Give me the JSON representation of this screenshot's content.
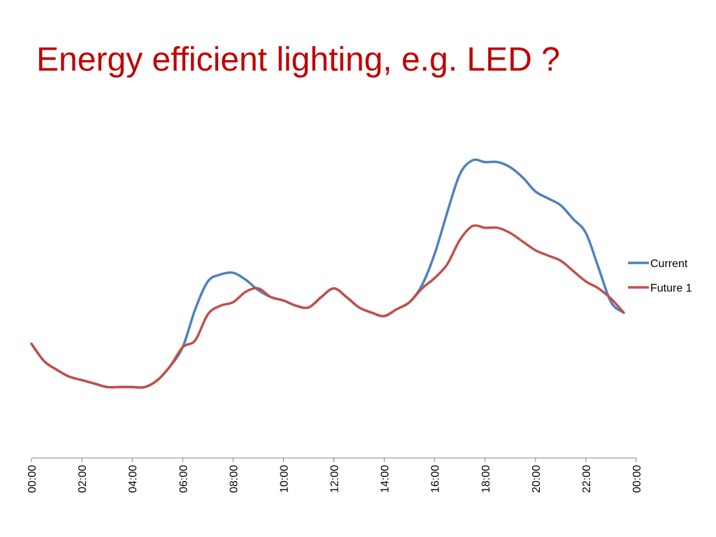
{
  "slide": {
    "title": "Energy efficient lighting, e.g. LED ?"
  },
  "chart_data": {
    "type": "line",
    "title": "",
    "xlabel": "",
    "ylabel": "",
    "x_ticks": [
      "00:00",
      "02:00",
      "04:00",
      "06:00",
      "08:00",
      "10:00",
      "12:00",
      "14:00",
      "16:00",
      "18:00",
      "20:00",
      "22:00",
      "00:00"
    ],
    "x_hours": [
      0,
      0.5,
      1,
      1.5,
      2,
      2.5,
      3,
      3.5,
      4,
      4.5,
      5,
      5.5,
      6,
      6.5,
      7,
      7.5,
      8,
      8.5,
      9,
      9.5,
      10,
      10.5,
      11,
      11.5,
      12,
      12.5,
      13,
      13.5,
      14,
      14.5,
      15,
      15.5,
      16,
      16.5,
      17,
      17.5,
      18,
      18.5,
      19,
      19.5,
      20,
      20.5,
      21,
      21.5,
      22,
      22.5,
      23,
      23.5
    ],
    "ylim": [
      0,
      1
    ],
    "y_axis_visible": false,
    "grid": false,
    "legend_position": "right",
    "series": [
      {
        "name": "Current",
        "color": "#4f81bd",
        "values": [
          0.33,
          0.28,
          0.255,
          0.235,
          0.225,
          0.215,
          0.205,
          0.205,
          0.205,
          0.205,
          0.225,
          0.265,
          0.32,
          0.43,
          0.51,
          0.53,
          0.535,
          0.515,
          0.485,
          0.465,
          0.455,
          0.44,
          0.435,
          0.465,
          0.49,
          0.465,
          0.435,
          0.42,
          0.41,
          0.43,
          0.45,
          0.5,
          0.59,
          0.71,
          0.82,
          0.86,
          0.855,
          0.855,
          0.84,
          0.81,
          0.77,
          0.75,
          0.73,
          0.69,
          0.65,
          0.55,
          0.45,
          0.42
        ]
      },
      {
        "name": "Future 1",
        "color": "#c0504d",
        "values": [
          0.33,
          0.28,
          0.255,
          0.235,
          0.225,
          0.215,
          0.205,
          0.205,
          0.205,
          0.205,
          0.225,
          0.265,
          0.32,
          0.34,
          0.415,
          0.44,
          0.45,
          0.48,
          0.49,
          0.465,
          0.455,
          0.44,
          0.435,
          0.465,
          0.49,
          0.465,
          0.435,
          0.42,
          0.41,
          0.43,
          0.45,
          0.49,
          0.52,
          0.56,
          0.63,
          0.67,
          0.665,
          0.665,
          0.65,
          0.625,
          0.6,
          0.585,
          0.57,
          0.54,
          0.51,
          0.49,
          0.46,
          0.42
        ]
      }
    ]
  }
}
